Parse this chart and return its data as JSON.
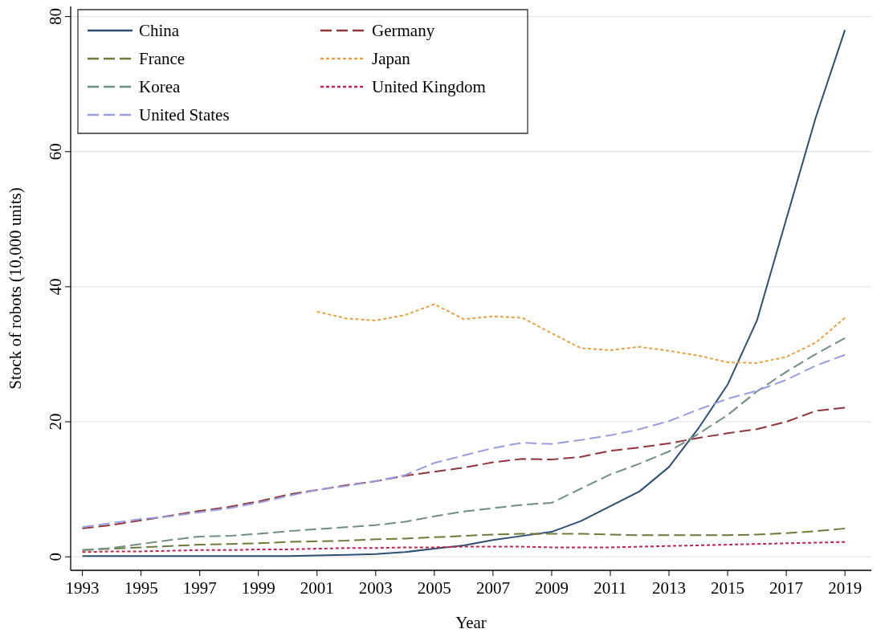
{
  "chart_data": {
    "type": "line",
    "xlabel": "Year",
    "ylabel": "Stock of robots (10,000 units)",
    "x": [
      1993,
      1994,
      1995,
      1996,
      1997,
      1998,
      1999,
      2000,
      2001,
      2002,
      2003,
      2004,
      2005,
      2006,
      2007,
      2008,
      2009,
      2010,
      2011,
      2012,
      2013,
      2014,
      2015,
      2016,
      2017,
      2018,
      2019
    ],
    "xlim": [
      1992.6,
      2019.9
    ],
    "xticks": [
      1993,
      1995,
      1997,
      1999,
      2001,
      2003,
      2005,
      2007,
      2009,
      2011,
      2013,
      2015,
      2017,
      2019
    ],
    "ylim": [
      -2,
      81.5
    ],
    "yticks": [
      0,
      20,
      40,
      60,
      80
    ],
    "grid": "y",
    "legend": "top left",
    "series": [
      {
        "name": "China",
        "color": "#2d4f73",
        "line_style": "solid",
        "values": [
          0.1,
          0.1,
          0.1,
          0.1,
          0.1,
          0.1,
          0.1,
          0.1,
          0.2,
          0.3,
          0.4,
          0.7,
          1.2,
          1.7,
          2.5,
          3.1,
          3.7,
          5.3,
          7.5,
          9.7,
          13.3,
          19,
          25.5,
          35,
          50,
          65,
          78
        ]
      },
      {
        "name": "Germany",
        "color": "#90353b",
        "line_style": "dashed",
        "values": [
          4.2,
          4.7,
          5.4,
          6.1,
          6.8,
          7.4,
          8.2,
          9.2,
          9.9,
          10.6,
          11.2,
          12.0,
          12.6,
          13.2,
          14.0,
          14.5,
          14.4,
          14.8,
          15.7,
          16.2,
          16.8,
          17.6,
          18.3,
          18.9,
          20.0,
          21.6,
          22.1
        ]
      },
      {
        "name": "France",
        "color": "#6e7a3a",
        "line_style": "dashed",
        "values": [
          1.0,
          1.2,
          1.4,
          1.6,
          1.8,
          1.9,
          2.0,
          2.2,
          2.3,
          2.4,
          2.6,
          2.7,
          2.9,
          3.1,
          3.3,
          3.4,
          3.4,
          3.4,
          3.3,
          3.2,
          3.2,
          3.2,
          3.2,
          3.3,
          3.5,
          3.8,
          4.2
        ]
      },
      {
        "name": "Japan",
        "color": "#e8a040",
        "line_style": "dotted",
        "values": [
          null,
          null,
          null,
          null,
          null,
          null,
          null,
          null,
          36.3,
          35.3,
          35.0,
          35.8,
          37.4,
          35.2,
          35.6,
          35.4,
          33.1,
          30.9,
          30.6,
          31.1,
          30.5,
          29.8,
          28.8,
          28.7,
          29.6,
          31.7,
          35.4
        ]
      },
      {
        "name": "Korea",
        "color": "#6f8f7f",
        "line_style": "dashed",
        "values": [
          1.0,
          1.3,
          1.9,
          2.5,
          3.0,
          3.1,
          3.4,
          3.8,
          4.1,
          4.4,
          4.7,
          5.2,
          6.0,
          6.7,
          7.2,
          7.7,
          8.0,
          10.1,
          12.2,
          13.8,
          15.6,
          18.2,
          21.0,
          24.5,
          27.4,
          30.0,
          32.4
        ]
      },
      {
        "name": "United Kingdom",
        "color": "#c0244a",
        "line_style": "dotted",
        "values": [
          0.7,
          0.8,
          0.8,
          0.9,
          1.0,
          1.0,
          1.1,
          1.1,
          1.2,
          1.3,
          1.3,
          1.4,
          1.4,
          1.5,
          1.5,
          1.5,
          1.4,
          1.4,
          1.4,
          1.5,
          1.6,
          1.7,
          1.8,
          1.9,
          2.0,
          2.1,
          2.2
        ]
      },
      {
        "name": "United States",
        "color": "#9b9be0",
        "line_style": "dashed",
        "values": [
          4.4,
          5.0,
          5.6,
          6.0,
          6.6,
          7.2,
          8.0,
          9.0,
          9.9,
          10.5,
          11.2,
          12.1,
          13.9,
          15.0,
          16.1,
          16.9,
          16.7,
          17.3,
          18.0,
          18.9,
          20.1,
          21.8,
          23.4,
          24.6,
          26.2,
          28.3,
          29.9
        ]
      }
    ]
  }
}
